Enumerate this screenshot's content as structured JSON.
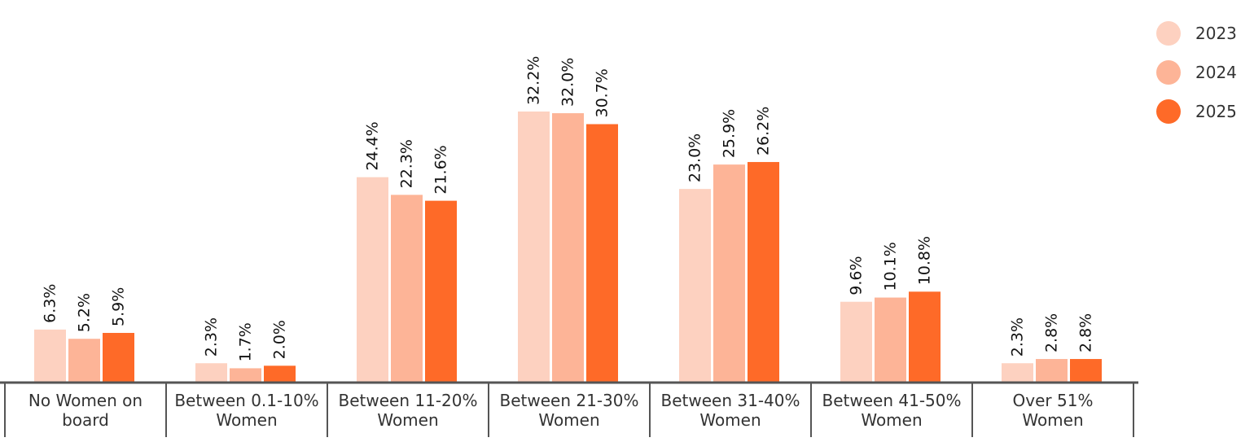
{
  "chart_data": {
    "type": "bar",
    "title": "",
    "xlabel": "",
    "ylabel": "",
    "categories": [
      [
        "No Women on",
        "board"
      ],
      [
        "Between 0.1-10%",
        "Women"
      ],
      [
        "Between 11-20%",
        "Women"
      ],
      [
        "Between 21-30%",
        "Women"
      ],
      [
        "Between 31-40%",
        "Women"
      ],
      [
        "Between 41-50%",
        "Women"
      ],
      [
        "Over 51%",
        "Women"
      ]
    ],
    "series": [
      {
        "name": "2023",
        "color": "#fdd1c0",
        "values": [
          6.3,
          2.3,
          24.4,
          32.2,
          23.0,
          9.6,
          2.3
        ]
      },
      {
        "name": "2024",
        "color": "#fdb497",
        "values": [
          5.2,
          1.7,
          22.3,
          32.0,
          25.9,
          10.1,
          2.8
        ]
      },
      {
        "name": "2025",
        "color": "#fe6a28",
        "values": [
          5.9,
          2.0,
          21.6,
          30.7,
          26.2,
          10.8,
          2.8
        ]
      }
    ],
    "value_suffix": "%",
    "ylim": [
      0,
      32.2
    ],
    "grid": false,
    "legend_position": "top-right",
    "axis_color": "#555555"
  }
}
